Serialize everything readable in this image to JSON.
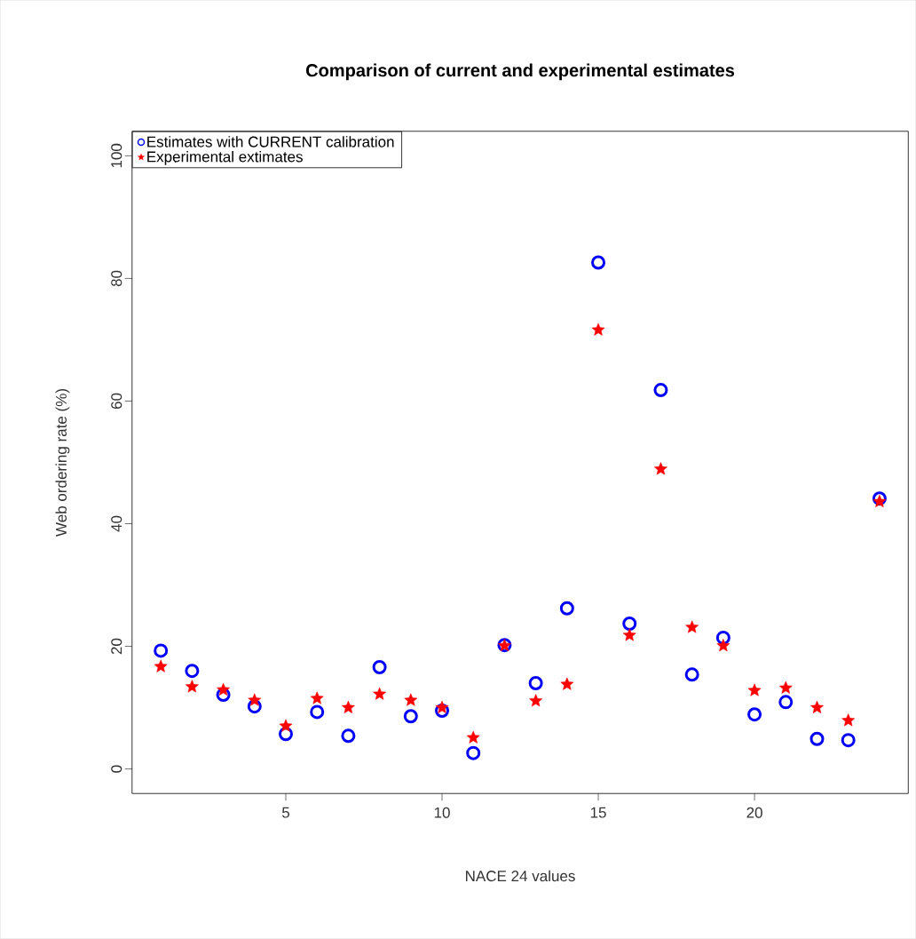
{
  "chart_data": {
    "type": "scatter",
    "title": "Comparison of current and experimental estimates",
    "xlabel": "NACE 24 values",
    "ylabel": "Web ordering rate (%)",
    "x": [
      1,
      2,
      3,
      4,
      5,
      6,
      7,
      8,
      9,
      10,
      11,
      12,
      13,
      14,
      15,
      16,
      17,
      18,
      19,
      20,
      21,
      22,
      23,
      24
    ],
    "series": [
      {
        "name": "Estimates with CURRENT calibration",
        "color": "#0000ff",
        "marker": "circle",
        "values": [
          19.3,
          16.0,
          12.1,
          10.2,
          5.7,
          9.3,
          5.4,
          16.6,
          8.6,
          9.5,
          2.6,
          20.2,
          14.0,
          26.2,
          82.6,
          23.7,
          61.8,
          15.4,
          21.4,
          8.9,
          10.9,
          4.9,
          4.7,
          44.1
        ]
      },
      {
        "name": "Experimental extimates",
        "color": "#ff0000",
        "marker": "star",
        "values": [
          16.7,
          13.4,
          12.9,
          11.2,
          7.0,
          11.5,
          10.0,
          12.2,
          11.2,
          10.0,
          5.1,
          20.1,
          11.1,
          13.8,
          71.6,
          21.8,
          48.9,
          23.1,
          20.1,
          12.8,
          13.2,
          10.0,
          7.9,
          43.6
        ]
      }
    ],
    "xlim": [
      0.08,
      24.92
    ],
    "ylim": [
      -4,
      104
    ],
    "xticks": [
      5,
      10,
      15,
      20
    ],
    "yticks": [
      0,
      20,
      40,
      60,
      80,
      100
    ],
    "grid": false,
    "legend": "top left"
  }
}
